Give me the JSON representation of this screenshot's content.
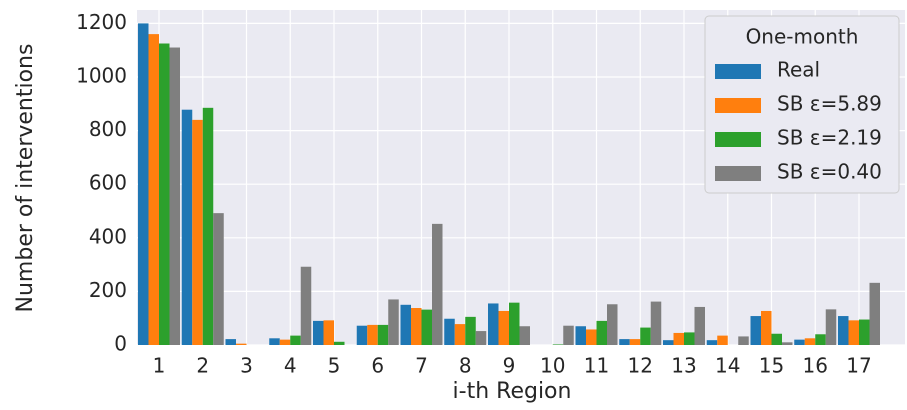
{
  "chart_data": {
    "type": "bar",
    "x_label": "i-th Region",
    "y_label": "Number of interventions",
    "categories": [
      "1",
      "2",
      "3",
      "4",
      "5",
      "6",
      "7",
      "8",
      "9",
      "10",
      "11",
      "12",
      "13",
      "14",
      "15",
      "16",
      "17"
    ],
    "legend_title": "One-month",
    "legend_position": "upper right",
    "series": [
      {
        "name": "Real",
        "color": "#1f77b4",
        "values": [
          1200,
          878,
          22,
          25,
          90,
          72,
          150,
          98,
          155,
          0,
          70,
          22,
          18,
          18,
          108,
          20,
          108
        ]
      },
      {
        "name": "SB ε=5.89",
        "color": "#ff7f0e",
        "values": [
          1160,
          840,
          5,
          20,
          92,
          75,
          138,
          78,
          127,
          0,
          58,
          22,
          45,
          35,
          127,
          25,
          92
        ]
      },
      {
        "name": "SB ε=2.19",
        "color": "#2ca02c",
        "values": [
          1125,
          885,
          0,
          35,
          12,
          75,
          132,
          105,
          158,
          2,
          90,
          65,
          47,
          0,
          42,
          40,
          95
        ]
      },
      {
        "name": "SB ε=0.40",
        "color": "#7f7f7f",
        "values": [
          1110,
          492,
          0,
          292,
          0,
          170,
          452,
          52,
          70,
          72,
          152,
          162,
          142,
          32,
          10,
          133,
          232
        ]
      }
    ],
    "ylim": [
      0,
      1250
    ],
    "yticks": [
      0,
      200,
      400,
      600,
      800,
      1000,
      1200
    ],
    "grid": true
  }
}
